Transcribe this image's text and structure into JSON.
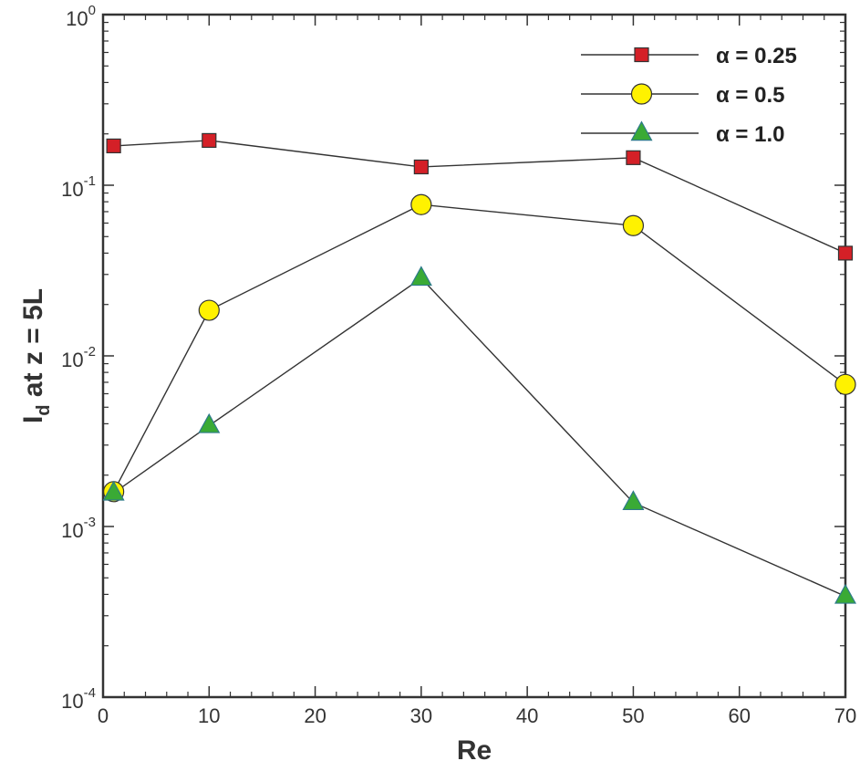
{
  "chart_data": {
    "type": "line",
    "title": "",
    "xlabel": "Re",
    "ylabel": "I",
    "ylabel_sub": "d",
    "ylabel_rest": " at z = 5L",
    "xlim": [
      0,
      70
    ],
    "ylim": [
      0.0001,
      1
    ],
    "yscale": "log",
    "x_ticks": [
      0,
      10,
      20,
      30,
      40,
      50,
      60,
      70
    ],
    "x_tick_labels": [
      "0",
      "10",
      "20",
      "30",
      "40",
      "50",
      "60",
      "70"
    ],
    "y_ticks": [
      0,
      -1,
      -2,
      -3,
      -4
    ],
    "y_tick_labels": [
      {
        "base": "10",
        "exp": "0"
      },
      {
        "base": "10",
        "exp": "-1"
      },
      {
        "base": "10",
        "exp": "-2"
      },
      {
        "base": "10",
        "exp": "-3"
      },
      {
        "base": "10",
        "exp": "-4"
      }
    ],
    "legend_position": "top-right",
    "series": [
      {
        "name": "α = 0.25",
        "marker": "square",
        "color": "#d42027",
        "x": [
          1,
          10,
          30,
          50,
          70
        ],
        "y": [
          0.17,
          0.183,
          0.128,
          0.145,
          0.04
        ]
      },
      {
        "name": "α = 0.5",
        "marker": "circle",
        "color": "#fff200",
        "x": [
          1,
          10,
          30,
          50,
          70
        ],
        "y": [
          0.0016,
          0.0185,
          0.077,
          0.058,
          0.0068
        ]
      },
      {
        "name": "α = 1.0",
        "marker": "triangle",
        "color": "#3aaa35",
        "x": [
          1,
          10,
          30,
          50,
          70
        ],
        "y": [
          0.00157,
          0.0039,
          0.0285,
          0.00138,
          0.00039
        ]
      }
    ]
  }
}
